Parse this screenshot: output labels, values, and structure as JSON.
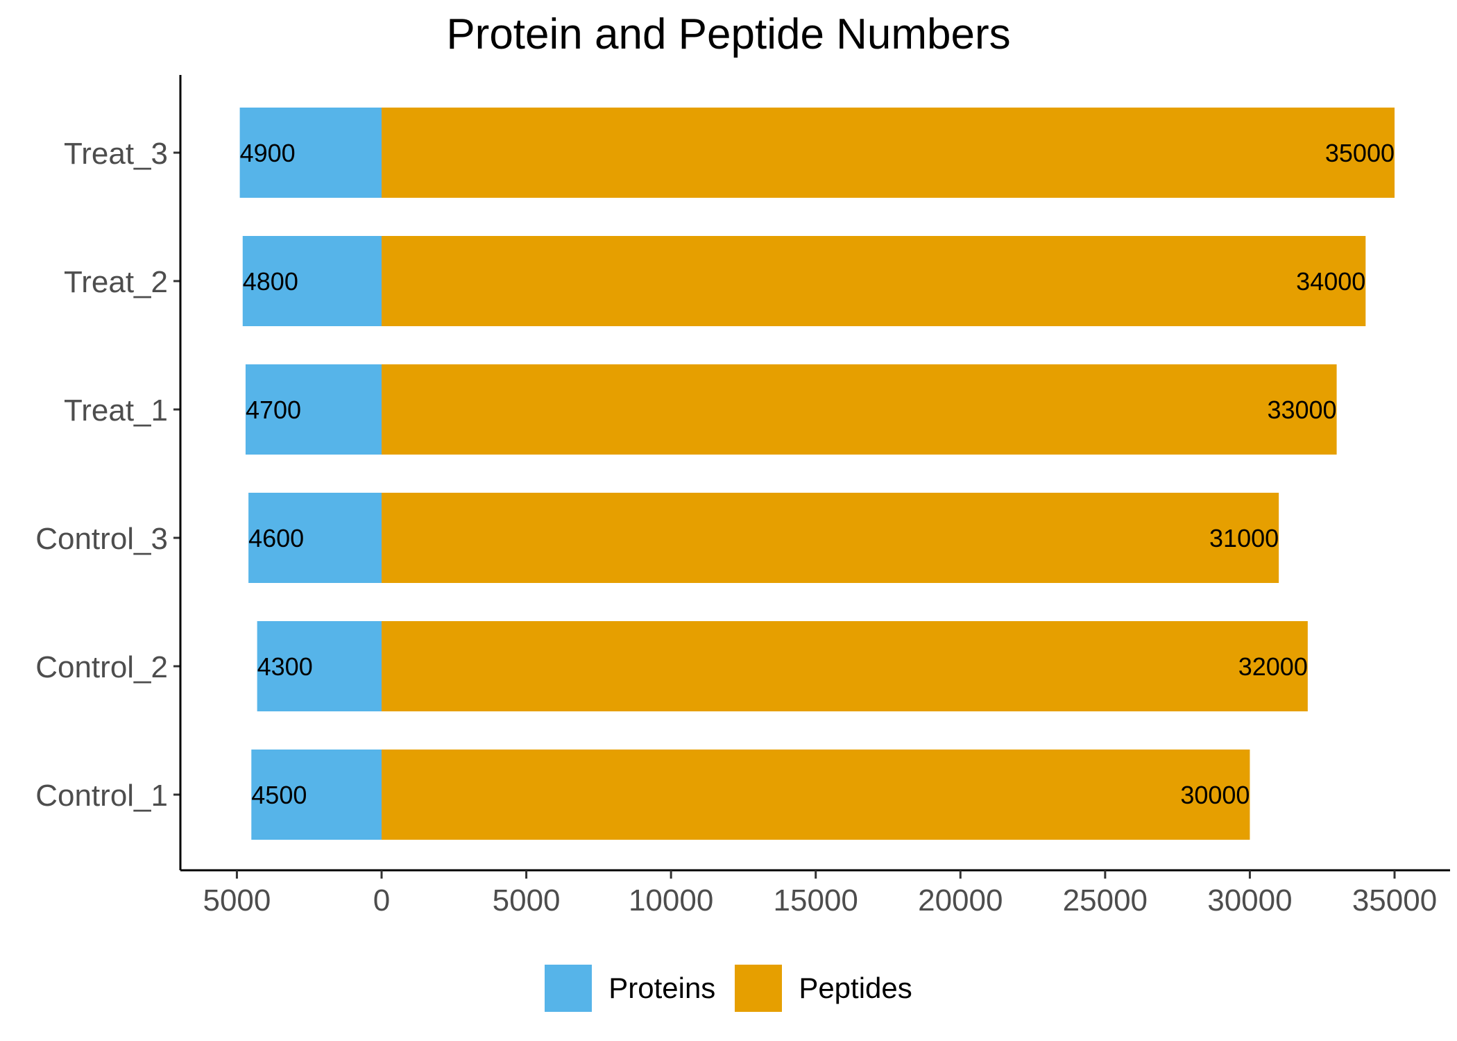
{
  "chart_data": {
    "type": "bar",
    "orientation": "horizontal",
    "title": "Protein and Peptide Numbers",
    "xlabel": "",
    "ylabel": "",
    "categories": [
      "Control_1",
      "Control_2",
      "Control_3",
      "Treat_1",
      "Treat_2",
      "Treat_3"
    ],
    "series": [
      {
        "name": "Proteins",
        "values": [
          4500,
          4300,
          4600,
          4700,
          4800,
          4900
        ],
        "direction": "left",
        "color": "#56B4E9"
      },
      {
        "name": "Peptides",
        "values": [
          30000,
          32000,
          31000,
          33000,
          34000,
          35000
        ],
        "direction": "right",
        "color": "#E69F00"
      }
    ],
    "xlim": [
      -6000,
      37000
    ],
    "xticks": [
      -5000,
      0,
      5000,
      10000,
      15000,
      20000,
      25000,
      30000,
      35000
    ],
    "xtick_labels": [
      "5000",
      "0",
      "5000",
      "10000",
      "15000",
      "20000",
      "25000",
      "30000",
      "35000"
    ],
    "grid": false,
    "legend_position": "bottom"
  }
}
